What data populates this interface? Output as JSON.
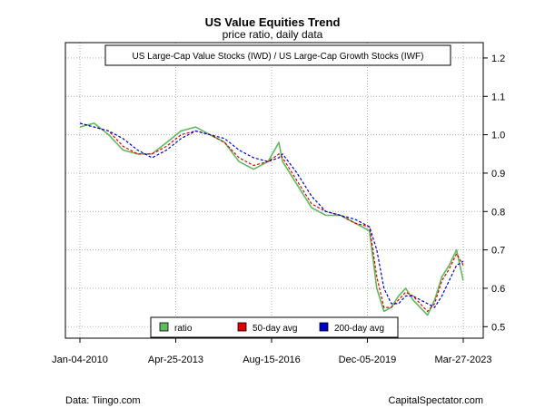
{
  "chart_data": {
    "type": "line",
    "title": "US Value Equities Trend",
    "subtitle": "price ratio, daily data",
    "annotation": "US Large-Cap Value Stocks (IWD) / US Large-Cap Growth Stocks (IWF)",
    "x_ticks": [
      "Jan-04-2010",
      "Apr-25-2013",
      "Aug-15-2016",
      "Dec-05-2019",
      "Mar-27-2023"
    ],
    "y_ticks": [
      "0.5",
      "0.6",
      "0.7",
      "0.8",
      "0.9",
      "1.0",
      "1.1",
      "1.2"
    ],
    "xlim": [
      "2010-01-04",
      "2023-03-27"
    ],
    "ylim": [
      0.47,
      1.24
    ],
    "grid": true,
    "legend_position": "bottom-center",
    "x": [
      "2010-01-04",
      "2010-07-01",
      "2011-01-01",
      "2011-07-01",
      "2012-01-01",
      "2012-07-01",
      "2013-01-01",
      "2013-07-01",
      "2014-01-01",
      "2014-07-01",
      "2015-01-01",
      "2015-07-01",
      "2016-01-01",
      "2016-07-01",
      "2016-11-15",
      "2017-01-01",
      "2017-07-01",
      "2018-01-01",
      "2018-07-01",
      "2019-01-01",
      "2019-07-01",
      "2020-01-01",
      "2020-04-01",
      "2020-07-01",
      "2020-10-01",
      "2021-01-01",
      "2021-04-01",
      "2021-07-01",
      "2021-10-01",
      "2022-01-01",
      "2022-04-01",
      "2022-07-01",
      "2022-10-01",
      "2023-01-01",
      "2023-03-27"
    ],
    "series": [
      {
        "name": "ratio",
        "color": "#5dbb5d",
        "values": [
          1.02,
          1.03,
          1.0,
          0.96,
          0.95,
          0.95,
          0.98,
          1.01,
          1.02,
          1.0,
          0.98,
          0.93,
          0.91,
          0.93,
          0.98,
          0.93,
          0.87,
          0.81,
          0.79,
          0.79,
          0.77,
          0.75,
          0.6,
          0.54,
          0.55,
          0.58,
          0.6,
          0.57,
          0.55,
          0.53,
          0.57,
          0.63,
          0.66,
          0.7,
          0.62
        ]
      },
      {
        "name": "50-day avg",
        "color": "#e00000",
        "values": [
          1.03,
          1.02,
          1.01,
          0.97,
          0.95,
          0.95,
          0.97,
          1.0,
          1.01,
          1.0,
          0.98,
          0.94,
          0.92,
          0.93,
          0.95,
          0.94,
          0.88,
          0.82,
          0.8,
          0.79,
          0.77,
          0.76,
          0.63,
          0.55,
          0.55,
          0.57,
          0.59,
          0.58,
          0.56,
          0.54,
          0.56,
          0.62,
          0.65,
          0.69,
          0.66
        ]
      },
      {
        "name": "200-day avg",
        "color": "#0000cc",
        "values": [
          1.03,
          1.02,
          1.01,
          0.99,
          0.96,
          0.94,
          0.96,
          0.99,
          1.01,
          1.0,
          0.99,
          0.96,
          0.94,
          0.93,
          0.94,
          0.95,
          0.9,
          0.84,
          0.8,
          0.79,
          0.78,
          0.76,
          0.7,
          0.6,
          0.56,
          0.56,
          0.58,
          0.58,
          0.57,
          0.56,
          0.55,
          0.58,
          0.62,
          0.66,
          0.67
        ]
      }
    ]
  },
  "footer": {
    "left": "Data: Tiingo.com",
    "right": "CapitalSpectator.com"
  }
}
